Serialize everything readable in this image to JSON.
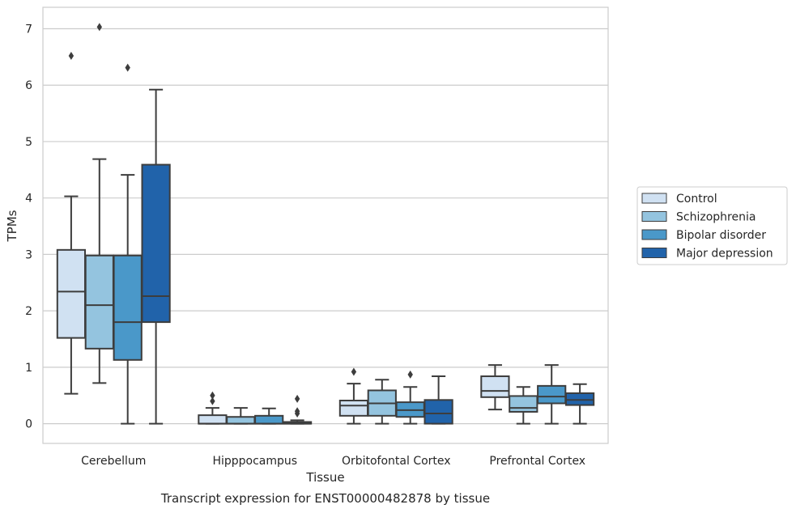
{
  "chart_data": {
    "type": "box",
    "caption": "Transcript expression for ENST00000482878 by tissue",
    "xlabel": "Tissue",
    "ylabel": "TPMs",
    "ylim": [
      -0.35,
      7.38
    ],
    "yticks": [
      0,
      1,
      2,
      3,
      4,
      5,
      6,
      7
    ],
    "grid": "horizontal",
    "legend_position": "right",
    "categories": [
      "Cerebellum",
      "Hipppocampus",
      "Orbitofontal Cortex",
      "Prefrontal Cortex"
    ],
    "series": [
      {
        "name": "Control",
        "color": "#d0e1f2",
        "boxes": [
          {
            "whisker_low": 0.53,
            "q1": 1.52,
            "median": 2.34,
            "q3": 3.08,
            "whisker_high": 4.03,
            "outliers": [
              6.52
            ]
          },
          {
            "whisker_low": 0.0,
            "q1": 0.0,
            "median": 0.0,
            "q3": 0.15,
            "whisker_high": 0.28,
            "outliers": [
              0.4,
              0.5
            ]
          },
          {
            "whisker_low": 0.0,
            "q1": 0.14,
            "median": 0.32,
            "q3": 0.41,
            "whisker_high": 0.71,
            "outliers": [
              0.92
            ]
          },
          {
            "whisker_low": 0.25,
            "q1": 0.47,
            "median": 0.58,
            "q3": 0.84,
            "whisker_high": 1.04,
            "outliers": []
          }
        ]
      },
      {
        "name": "Schizophrenia",
        "color": "#94c4df",
        "boxes": [
          {
            "whisker_low": 0.72,
            "q1": 1.33,
            "median": 2.1,
            "q3": 2.98,
            "whisker_high": 4.69,
            "outliers": [
              7.03
            ]
          },
          {
            "whisker_low": 0.0,
            "q1": 0.0,
            "median": 0.0,
            "q3": 0.12,
            "whisker_high": 0.28,
            "outliers": []
          },
          {
            "whisker_low": 0.0,
            "q1": 0.14,
            "median": 0.36,
            "q3": 0.59,
            "whisker_high": 0.78,
            "outliers": []
          },
          {
            "whisker_low": 0.0,
            "q1": 0.21,
            "median": 0.28,
            "q3": 0.49,
            "whisker_high": 0.65,
            "outliers": []
          }
        ]
      },
      {
        "name": "Bipolar disorder",
        "color": "#4a98c9",
        "boxes": [
          {
            "whisker_low": 0.0,
            "q1": 1.13,
            "median": 1.8,
            "q3": 2.98,
            "whisker_high": 4.41,
            "outliers": [
              6.31
            ]
          },
          {
            "whisker_low": 0.0,
            "q1": 0.0,
            "median": 0.0,
            "q3": 0.14,
            "whisker_high": 0.27,
            "outliers": []
          },
          {
            "whisker_low": 0.0,
            "q1": 0.12,
            "median": 0.24,
            "q3": 0.38,
            "whisker_high": 0.65,
            "outliers": [
              0.87
            ]
          },
          {
            "whisker_low": 0.0,
            "q1": 0.36,
            "median": 0.48,
            "q3": 0.67,
            "whisker_high": 1.04,
            "outliers": []
          }
        ]
      },
      {
        "name": "Major depression",
        "color": "#2163aa",
        "boxes": [
          {
            "whisker_low": 0.0,
            "q1": 1.8,
            "median": 2.26,
            "q3": 4.59,
            "whisker_high": 5.92,
            "outliers": []
          },
          {
            "whisker_low": 0.0,
            "q1": 0.0,
            "median": 0.0,
            "q3": 0.03,
            "whisker_high": 0.06,
            "outliers": [
              0.18,
              0.22,
              0.44
            ]
          },
          {
            "whisker_low": 0.0,
            "q1": 0.0,
            "median": 0.18,
            "q3": 0.42,
            "whisker_high": 0.84,
            "outliers": []
          },
          {
            "whisker_low": 0.0,
            "q1": 0.33,
            "median": 0.42,
            "q3": 0.54,
            "whisker_high": 0.7,
            "outliers": []
          }
        ]
      }
    ]
  }
}
